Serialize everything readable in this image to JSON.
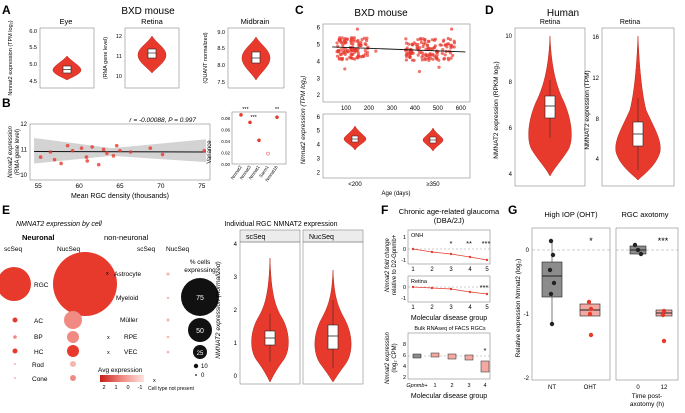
{
  "figure": {
    "colors": {
      "violin": "#e8392d",
      "violin_edge": "#b8281e",
      "violin_light": "#f08a82",
      "gray_box": "#8c8c8c",
      "pink_box": "#f2a9a2",
      "ci_gray": "#c8c8c8"
    },
    "panel_a": {
      "letter": "A",
      "title": "BXD mouse",
      "plots": [
        {
          "title": "Eye",
          "ylabel": "Nmnat2 expression (TPM log₂)",
          "ticks": [
            "4.5",
            "5.0",
            "5.5",
            "6.0"
          ]
        },
        {
          "title": "Retina",
          "ylabel": "(RMA gene level)",
          "ticks": [
            "10",
            "11",
            "12"
          ]
        },
        {
          "title": "Midbrain",
          "ylabel": "(QUANT normalized)",
          "ticks": [
            "7.5",
            "8.0",
            "8.5",
            "9.0"
          ]
        }
      ]
    },
    "panel_b": {
      "letter": "B",
      "annotation": "r = -0.00088, P = 0.997",
      "ylabel_1": "Nmnat2 expression",
      "ylabel_2": "(RMA gene level)",
      "xlabel": "Mean RGC density (thousands)",
      "xticks": [
        "55",
        "60",
        "65",
        "70",
        "75"
      ],
      "yticks": [
        "10",
        "11",
        "12"
      ],
      "points": [
        {
          "x": 55.3,
          "y": 10.7
        },
        {
          "x": 56.5,
          "y": 10.9
        },
        {
          "x": 57.8,
          "y": 10.45
        },
        {
          "x": 58.6,
          "y": 11.15
        },
        {
          "x": 59.2,
          "y": 10.95
        },
        {
          "x": 60.3,
          "y": 11.05
        },
        {
          "x": 60.9,
          "y": 10.7
        },
        {
          "x": 61.6,
          "y": 11.1
        },
        {
          "x": 62.4,
          "y": 10.4
        },
        {
          "x": 63.0,
          "y": 11.0
        },
        {
          "x": 63.4,
          "y": 10.85
        },
        {
          "x": 64.2,
          "y": 10.75
        },
        {
          "x": 64.6,
          "y": 11.15
        },
        {
          "x": 66.3,
          "y": 10.9
        },
        {
          "x": 68.7,
          "y": 11.05
        },
        {
          "x": 70.2,
          "y": 10.8
        },
        {
          "x": 75.3,
          "y": 10.95
        },
        {
          "x": 57.0,
          "y": 10.6
        },
        {
          "x": 61.0,
          "y": 10.55
        },
        {
          "x": 65.0,
          "y": 10.95
        }
      ],
      "variance": {
        "ylabel": "Variance",
        "yticks": [
          "0.00",
          "0.02",
          "0.04",
          "0.06",
          "0.08"
        ],
        "stars": [
          "***",
          "***",
          "**"
        ],
        "categories": [
          "Nmnat2",
          "Nmnat3",
          "Nmnat1",
          "Sarm1",
          "Nmnat1b"
        ],
        "values": [
          0.085,
          0.072,
          0.041,
          0.018,
          0.081
        ]
      }
    },
    "panel_c": {
      "letter": "C",
      "title": "BXD mouse",
      "ylabel": "Nmnat2 expression (TPM log₂)",
      "xlabel": "Age (days)",
      "xticks": [
        "100",
        "200",
        "300",
        "400",
        "500",
        "600"
      ],
      "yticks": [
        "2",
        "3",
        "4",
        "5",
        "6"
      ],
      "group_labels": [
        "<200",
        "≥350"
      ]
    },
    "panel_d": {
      "letter": "D",
      "title": "Human",
      "plots": [
        {
          "title": "Retina",
          "ylabel": "NMNAT2 expression (RPKM log₂)",
          "ticks": [
            "4",
            "6",
            "8",
            "10"
          ]
        },
        {
          "title": "Retina",
          "ylabel": "NMNAT2 expression (TPM)",
          "ticks": [
            "4",
            "8",
            "12",
            "16"
          ]
        }
      ]
    },
    "panel_e": {
      "letter": "E",
      "title": "NMNAT2 expression by cell",
      "group_neuronal": "Neuronal",
      "group_nonneuronal": "non-neuronal",
      "col_scseq": "scSeq",
      "col_nucseq": "NucSeq",
      "cell_types_left": [
        "RGC",
        "AC",
        "BP",
        "HC",
        "Rod",
        "Cone"
      ],
      "cell_types_right": [
        "Astrocyte",
        "Myeloid",
        "Müller",
        "RPE",
        "VEC"
      ],
      "pct_title_1": "% cells",
      "pct_title_2": "expressing",
      "pct_values": [
        "75",
        "50",
        "25",
        "10",
        "0"
      ],
      "avg_title": "Avg expression",
      "avg_ticks": [
        "2",
        "1",
        "0",
        "-1"
      ],
      "not_present_mark": "x",
      "not_present_label": "Cell type not present",
      "right_title": "Individual RGC NMNAT2 expression",
      "right_ylabel": "NMNAT2 expression (normalized)",
      "right_yticks": [
        "0",
        "1",
        "2",
        "3",
        "4"
      ],
      "facets": [
        "scSeq",
        "NucSeq"
      ]
    },
    "panel_f": {
      "letter": "F",
      "title_1": "Chronic age-related glaucoma",
      "title_2": "(DBA/2J)",
      "ylabel_top_1": "Nmnat2 fold change",
      "ylabel_top_2": "relative to D2-Gpnmb+",
      "onh_label": "ONH",
      "retina_label": "Retina",
      "onh_stars": [
        "*",
        "**",
        "***"
      ],
      "retina_star": "***",
      "xticks": [
        "1",
        "2",
        "3",
        "4",
        "5"
      ],
      "xlabel": "Molecular disease group",
      "bottom_title": "Bulk RNAseq of FACS RGCs",
      "ylabel_bot_1": "Nmnat2 expression",
      "ylabel_bot_2": "(log₂ CPM)",
      "bot_yticks": [
        "2",
        "4",
        "6",
        "8"
      ],
      "bot_xticks": [
        "Gpnmb+",
        "1",
        "2",
        "3",
        "4"
      ],
      "bot_star": "*",
      "onh_yticks": [
        "1",
        "0",
        "-1"
      ],
      "retina_yticks": [
        "0",
        "-1"
      ]
    },
    "panel_g": {
      "letter": "G",
      "left_title": "High IOP (OHT)",
      "right_title": "RGC axotomy",
      "ylabel": "Relative expression Nmnat2 (log₂)",
      "yticks": [
        "0",
        "-1",
        "-2"
      ],
      "left_xticks": [
        "NT",
        "OHT"
      ],
      "right_xticks": [
        "0",
        "12"
      ],
      "right_xlabel_1": "Time post-",
      "right_xlabel_2": "axotomy (h)",
      "left_star": "*",
      "right_star": "***"
    }
  }
}
